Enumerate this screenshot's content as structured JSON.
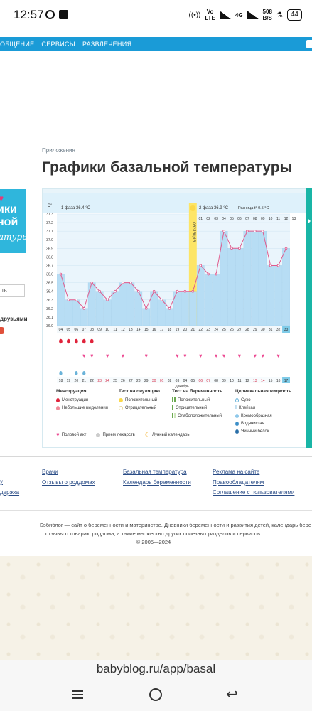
{
  "status_bar": {
    "time": "12:57",
    "net1": "Vo",
    "net1b": "LTE",
    "net2": "4G",
    "speed": "508",
    "speed_unit": "B/S",
    "battery": "44"
  },
  "nav": {
    "items": [
      "ОБЩЕНИЕ",
      "СЕРВИСЫ",
      "РАЗВЛЕЧЕНИЯ"
    ]
  },
  "breadcrumb": "Приложения",
  "page_title": "Графики базальной температуры",
  "sidebar": {
    "promo_line1": "ики",
    "promo_line2": "ной",
    "promo_line3": "атуры",
    "input_text": "ть",
    "friends": "друзьями"
  },
  "chart_header": {
    "unit": "С°",
    "phase1": "1 фаза",
    "phase1_temp": "36.4 °С",
    "phase2": "2 фаза",
    "phase2_temp": "36.9 °С",
    "diff_label": "Разница t°",
    "diff_value": "0.5 °С",
    "ovulation_label": "ОВУЛЯЦИЯ",
    "month_label": "Декабрь"
  },
  "chart_data": {
    "type": "line",
    "ylim": [
      36.0,
      37.3
    ],
    "yticks": [
      "37.3",
      "37.2",
      "37.1",
      "37.0",
      "36.9",
      "36.8",
      "36.7",
      "36.6",
      "36.5",
      "36.4",
      "36.3",
      "36.2",
      "36.1",
      "36.0"
    ],
    "cycle_days": [
      "",
      "",
      "",
      "",
      "",
      "",
      "",
      "",
      "",
      "",
      "",
      "",
      "",
      "",
      "",
      "",
      "",
      "",
      "01",
      "02",
      "03",
      "04",
      "05",
      "06",
      "07",
      "08",
      "09",
      "10",
      "11",
      "12",
      "13"
    ],
    "dates": [
      "04",
      "05",
      "06",
      "07",
      "08",
      "09",
      "10",
      "11",
      "12",
      "13",
      "14",
      "15",
      "16",
      "17",
      "18",
      "19",
      "20",
      "21",
      "22",
      "23",
      "24",
      "25",
      "26",
      "27",
      "28",
      "29",
      "30",
      "31",
      "32",
      "33"
    ],
    "dates_bottom": [
      "18",
      "19",
      "20",
      "21",
      "22",
      "23",
      "24",
      "25",
      "26",
      "27",
      "28",
      "29",
      "30",
      "01",
      "02",
      "03",
      "04",
      "05",
      "06",
      "07",
      "08",
      "09",
      "10",
      "11",
      "12",
      "13",
      "14",
      "15",
      "16",
      "17"
    ],
    "values": [
      36.6,
      36.3,
      36.3,
      36.2,
      36.5,
      36.4,
      36.3,
      36.4,
      36.5,
      36.5,
      36.4,
      36.2,
      36.4,
      36.3,
      36.2,
      36.4,
      36.4,
      36.4,
      36.7,
      36.6,
      36.6,
      37.1,
      36.9,
      36.9,
      37.1,
      37.1,
      37.1,
      36.7,
      36.7,
      36.9
    ],
    "ovulation_index": 17,
    "menstruation_days": [
      0,
      1,
      2,
      3,
      4
    ],
    "intercourse_days": [
      3,
      4,
      6,
      8,
      11,
      15,
      16,
      18,
      20,
      21,
      23,
      25,
      26,
      28
    ],
    "fluid_days": [
      0,
      2,
      3
    ],
    "today_index": 29,
    "colors": {
      "bars": "#b7ddf4",
      "line": "#e05a8c",
      "ovulation": "#fde566",
      "header": "#def1fb"
    }
  },
  "legend": {
    "menstruation": {
      "title": "Менструация",
      "items": [
        "Менструация",
        "Небольшие выделения"
      ]
    },
    "ovulation_test": {
      "title": "Тест на овуляцию",
      "items": [
        "Положительный",
        "Отрицательный"
      ]
    },
    "pregnancy_test": {
      "title": "Тест на беременность",
      "items": [
        "Положительный",
        "Отрицательный",
        "Слабоположительный"
      ]
    },
    "cervical": {
      "title": "Цервикальная жидкость",
      "items": [
        "Сухо",
        "Клейкая",
        "Кремообразная",
        "Водянистая",
        "Яичный белок"
      ]
    },
    "bottom": [
      "Половой акт",
      "Прием лекарств",
      "Лунный календарь"
    ]
  },
  "footer": {
    "col1": [
      "у",
      "держка"
    ],
    "col2": [
      "Врачи",
      "Отзывы о роддомах"
    ],
    "col3": [
      "Базальная температура",
      "Календарь беременности"
    ],
    "col4": [
      "Реклама на сайте",
      "Правообладателям",
      "Соглашение с пользователями"
    ],
    "about": "Бэбиблог — сайт о беременности и материнстве. Дневники беременности и развития детей, календарь бере",
    "about2": "отзывы о товарах, роддома, а также множество других полезных разделов и сервисов.",
    "copyright": "© 2005—2024"
  },
  "browser": {
    "url": "babyblog.ru/app/basal"
  }
}
